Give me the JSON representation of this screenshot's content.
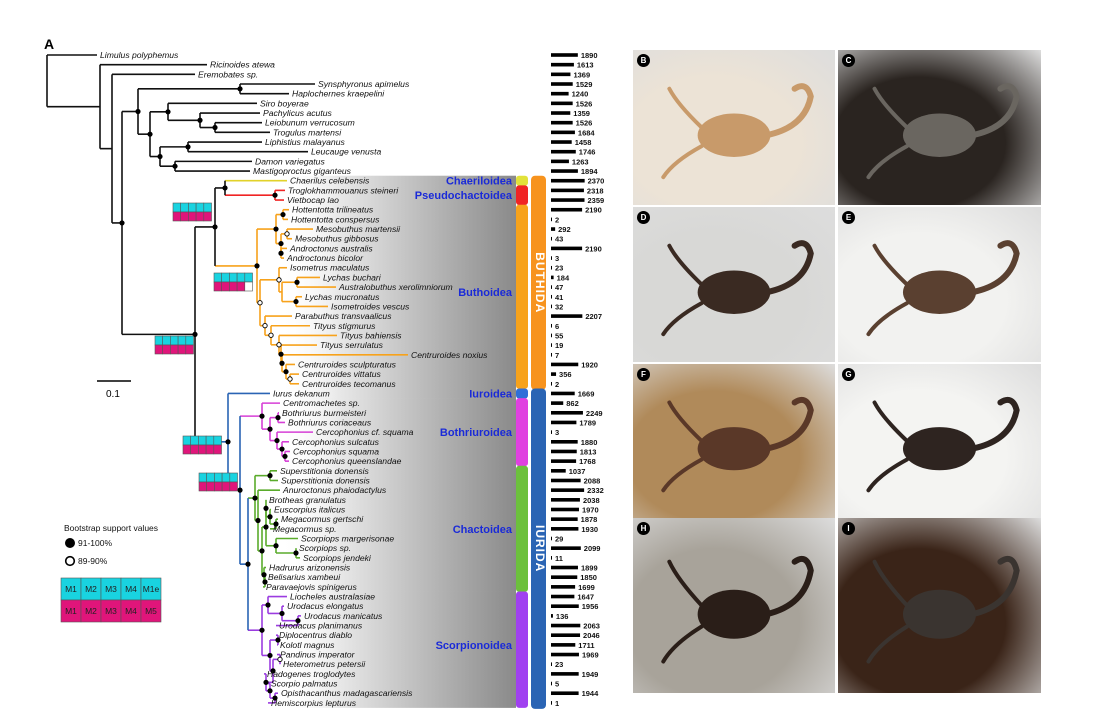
{
  "panel_label": "A",
  "scale_bar": "0.1",
  "taxa": [
    {
      "name": "Limulus polyphemus",
      "count": "1890"
    },
    {
      "name": "Ricinoides atewa",
      "count": "1613"
    },
    {
      "name": "Eremobates sp.",
      "count": "1369"
    },
    {
      "name": "Synsphyronus apimelus",
      "count": "1529"
    },
    {
      "name": "Haplochernes kraepelini",
      "count": "1240"
    },
    {
      "name": "Siro boyerae",
      "count": "1526"
    },
    {
      "name": "Pachylicus acutus",
      "count": "1359"
    },
    {
      "name": "Leiobunum verrucosum",
      "count": "1526"
    },
    {
      "name": "Trogulus martensi",
      "count": "1684"
    },
    {
      "name": "Liphistius malayanus",
      "count": "1458"
    },
    {
      "name": "Leucauge venusta",
      "count": "1746"
    },
    {
      "name": "Damon variegatus",
      "count": "1263"
    },
    {
      "name": "Mastigoproctus giganteus",
      "count": "1894"
    },
    {
      "name": "Chaerilus celebensis",
      "count": "2370"
    },
    {
      "name": "Troglokhammouanus steineri",
      "count": "2318"
    },
    {
      "name": "Vietbocap lao",
      "count": "2359"
    },
    {
      "name": "Hottentotta trilineatus",
      "count": "2190"
    },
    {
      "name": "Hottentotta conspersus",
      "count": "2"
    },
    {
      "name": "Mesobuthus martensii",
      "count": "292"
    },
    {
      "name": "Mesobuthus gibbosus",
      "count": "43"
    },
    {
      "name": "Androctonus australis",
      "count": "2190"
    },
    {
      "name": "Androctonus bicolor",
      "count": "3"
    },
    {
      "name": "Isometrus maculatus",
      "count": "23"
    },
    {
      "name": "Lychas buchari",
      "count": "184"
    },
    {
      "name": "Australobuthus xerolimniorum",
      "count": "47"
    },
    {
      "name": "Lychas mucronatus",
      "count": "41"
    },
    {
      "name": "Isometroides vescus",
      "count": "32"
    },
    {
      "name": "Parabuthus transvaalicus",
      "count": "2207"
    },
    {
      "name": "Tityus stigmurus",
      "count": "6"
    },
    {
      "name": "Tityus bahiensis",
      "count": "55"
    },
    {
      "name": "Tityus serrulatus",
      "count": "19"
    },
    {
      "name": "Centruroides noxius",
      "count": "7"
    },
    {
      "name": "Centruroides sculpturatus",
      "count": "1920"
    },
    {
      "name": "Centruroides vittatus",
      "count": "356"
    },
    {
      "name": "Centruroides tecomanus",
      "count": "2"
    },
    {
      "name": "Iurus dekanum",
      "count": "1669"
    },
    {
      "name": "Centromachetes sp.",
      "count": "862"
    },
    {
      "name": "Bothriurus burmeisteri",
      "count": "2249"
    },
    {
      "name": "Bothriurus coriaceaus",
      "count": "1789"
    },
    {
      "name": "Cercophonius cf. squama",
      "count": "3"
    },
    {
      "name": "Cercophonius sulcatus",
      "count": "1880"
    },
    {
      "name": "Cercophonius squama",
      "count": "1813"
    },
    {
      "name": "Cercophonius queenslandae",
      "count": "1768"
    },
    {
      "name": "Superstitionia donensis",
      "count": "1037"
    },
    {
      "name": "Superstitionia donensis",
      "count": "2088"
    },
    {
      "name": "Anuroctonus phaiodactylus",
      "count": "2332"
    },
    {
      "name": "Brotheas granulatus",
      "count": "2038"
    },
    {
      "name": "Euscorpius italicus",
      "count": "1970"
    },
    {
      "name": "Megacormus gertschi",
      "count": "1878"
    },
    {
      "name": "Megacormus sp.",
      "count": "1930"
    },
    {
      "name": "Scorpiops margerisonae",
      "count": "29"
    },
    {
      "name": "Scorpiops sp.",
      "count": "2099"
    },
    {
      "name": "Scorpiops jendeki",
      "count": "11"
    },
    {
      "name": "Hadrurus arizonensis",
      "count": "1899"
    },
    {
      "name": "Belisarius xambeui",
      "count": "1850"
    },
    {
      "name": "Paravaejovis spinigerus",
      "count": "1699"
    },
    {
      "name": "Liocheles australasiae",
      "count": "1647"
    },
    {
      "name": "Urodacus elongatus",
      "count": "1956"
    },
    {
      "name": "Urodacus manicatus",
      "count": "136"
    },
    {
      "name": "Urodacus planimanus",
      "count": "2063"
    },
    {
      "name": "Diplocentrus diablo",
      "count": "2046"
    },
    {
      "name": "Kolotl magnus",
      "count": "1711"
    },
    {
      "name": "Pandinus imperator",
      "count": "1969"
    },
    {
      "name": "Heterometrus petersii",
      "count": "23"
    },
    {
      "name": "Hadogenes troglodytes",
      "count": "1949"
    },
    {
      "name": "Scorpio palmatus",
      "count": "5"
    },
    {
      "name": "Opisthacanthus madagascariensis",
      "count": "1944"
    },
    {
      "name": "Hemiscorpius lepturus",
      "count": "1"
    }
  ],
  "clades": [
    {
      "name": "Chaeriloidea",
      "color": "#e2e23a"
    },
    {
      "name": "Pseudochactoidea",
      "color": "#f02424"
    },
    {
      "name": "Buthoidea",
      "color": "#f7a21b"
    },
    {
      "name": "Iuroidea",
      "color": "#2f6fd8"
    },
    {
      "name": "Bothriuroidea",
      "color": "#e040e0"
    },
    {
      "name": "Chactoidea",
      "color": "#6cc03c"
    },
    {
      "name": "Scorpionoidea",
      "color": "#a040f0"
    }
  ],
  "parvorders": [
    {
      "name": "BUTHIDA",
      "color": "#f7931e"
    },
    {
      "name": "IURIDA",
      "color": "#2a64b4"
    }
  ],
  "legend": {
    "title": "Bootstrap support values",
    "filled": "91-100%",
    "open": "89-90%",
    "row1": [
      "M1",
      "M2",
      "M3",
      "M4",
      "M1e"
    ],
    "row2": [
      "M1",
      "M2",
      "M3",
      "M4",
      "M5"
    ],
    "row1_color": "#19d3e0",
    "row2_color": "#e0157a"
  },
  "photos": [
    "B",
    "C",
    "D",
    "E",
    "F",
    "G",
    "H",
    "I"
  ]
}
